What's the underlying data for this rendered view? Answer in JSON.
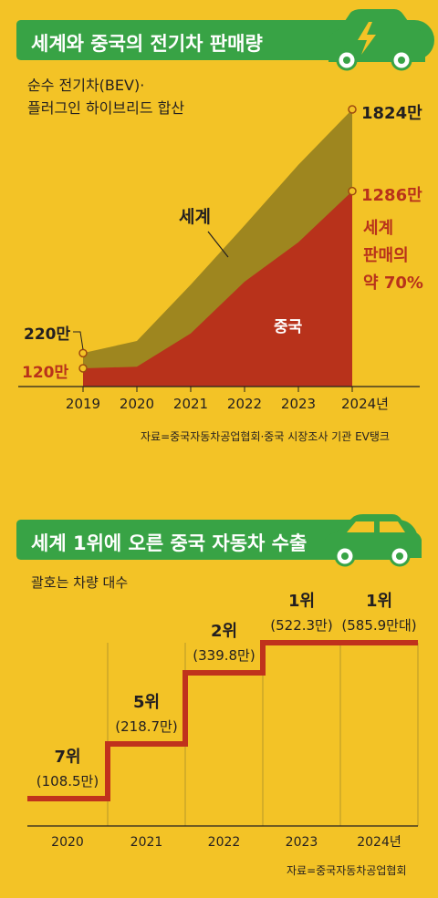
{
  "chart1": {
    "title": "세계와 중국의 전기차 판매량",
    "subtitle_line1": "순수 전기차(BEV)·",
    "subtitle_line2": "플러그인 하이브리드 합산",
    "source": "자료=중국자동차공업협회·중국 시장조사 기관 EV탱크",
    "annotations": {
      "world_start": "220만",
      "china_start": "120만",
      "world_end": "1824만",
      "china_end": "1286만",
      "share_line1": "세계",
      "share_line2": "판매의",
      "share_line3": "약 70%"
    },
    "colors": {
      "world": "#9e861f",
      "china": "#b8321b",
      "banner": "#38a345",
      "background": "#f3c326"
    }
  },
  "chart_data": [
    {
      "type": "area",
      "title": "세계와 중국의 전기차 판매량",
      "subtitle": "순수 전기차(BEV)·플러그인 하이브리드 합산",
      "x": [
        "2019",
        "2020",
        "2021",
        "2022",
        "2023",
        "2024년"
      ],
      "series": [
        {
          "name": "세계",
          "values": [
            220,
            300,
            670,
            1060,
            1460,
            1824
          ]
        },
        {
          "name": "중국",
          "values": [
            120,
            130,
            350,
            690,
            950,
            1286
          ]
        }
      ],
      "unit": "만",
      "ylim": [
        0,
        1900
      ],
      "legend": "inline labels"
    },
    {
      "type": "line",
      "title": "세계 1위에 오른 중국 자동차 수출",
      "subtitle": "괄호는 차량 대수",
      "categories": [
        "2020",
        "2021",
        "2022",
        "2023",
        "2024년"
      ],
      "rank_labels": [
        "7위",
        "5위",
        "2위",
        "1위",
        "1위"
      ],
      "value_labels": [
        "(108.5만)",
        "(218.7만)",
        "(339.8만)",
        "(522.3만)",
        "(585.9만대)"
      ],
      "series": [
        {
          "values": [
            7,
            5,
            2,
            1,
            1
          ]
        }
      ],
      "ranks": [
        7,
        5,
        2,
        1,
        1
      ]
    }
  ],
  "chart2": {
    "title": "세계 1위에 오른 중국 자동차 수출",
    "subtitle": "괄호는 차량 대수",
    "source": "자료=중국자동차공업협회",
    "line_color": "#c0321c"
  }
}
